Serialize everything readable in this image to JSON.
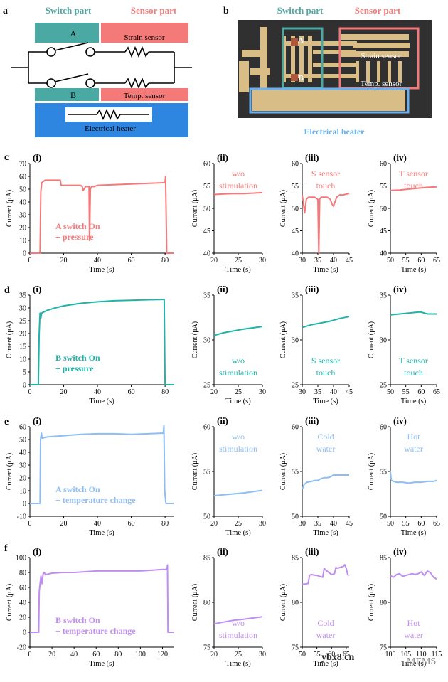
{
  "panel_letters": {
    "a": "a",
    "b": "b",
    "c": "c",
    "d": "d",
    "e": "e",
    "f": "f"
  },
  "panel_a": {
    "header_switch": "Switch part",
    "header_sensor": "Sensor part",
    "box_a": "A",
    "box_b": "B",
    "strain_label": "Strain sensor",
    "temp_label": "Temp. sensor",
    "heater_label": "Electrical heater"
  },
  "panel_b": {
    "header_switch": "Switch part",
    "header_sensor": "Sensor part",
    "label_a": "A",
    "label_b": "B",
    "strain_label": "Strain sensor",
    "temp_label": "Temp. sensor",
    "heater_caption": "Electrical heater"
  },
  "colors": {
    "switch_teal": "#4aa9a3",
    "sensor_pink": "#f47a7a",
    "heater_blue": "#2f86e0",
    "red": "#f47a7a",
    "teal": "#21b3a9",
    "blue": "#8ebdf5",
    "purple": "#c08ef2"
  },
  "watermark": {
    "left": "ybx8.cn",
    "right": "MEMS"
  },
  "chart_data": [
    {
      "id": "c",
      "color": "#f47a7a",
      "ylabel": "Current (μA)",
      "xlabel_main": "Time (s)",
      "xlabel_sub": "Time (s)",
      "subs": [
        {
          "label": "(i)",
          "type": "line",
          "xlim": [
            0,
            85
          ],
          "ylim": [
            0,
            70
          ],
          "xticks": [
            0,
            20,
            40,
            60,
            80
          ],
          "yticks": [
            0,
            10,
            20,
            30,
            40,
            50,
            60,
            70
          ],
          "annotation": [
            "A switch On",
            "+ pressure"
          ],
          "x": [
            0,
            6,
            6.5,
            7,
            8,
            9,
            18,
            18.5,
            30,
            31,
            31.5,
            33,
            34,
            35,
            35.3,
            35.8,
            36.5,
            38,
            40,
            60,
            79,
            80,
            80.3,
            81,
            85
          ],
          "y": [
            0,
            0,
            48,
            55,
            56,
            57,
            57,
            53,
            53,
            52,
            49,
            52,
            52,
            52,
            10,
            50,
            52,
            52,
            53,
            54,
            55,
            55,
            60,
            0,
            0
          ]
        },
        {
          "label": "(ii)",
          "type": "line",
          "xlim": [
            20,
            30
          ],
          "ylim": [
            40,
            60
          ],
          "xticks": [
            20,
            25,
            30
          ],
          "yticks": [
            40,
            45,
            50,
            55,
            60
          ],
          "annotation": [
            "w/o",
            "stimulation"
          ],
          "x": [
            20,
            22,
            24,
            26,
            28,
            30
          ],
          "y": [
            53.1,
            53.2,
            53.3,
            53.3,
            53.4,
            53.5
          ]
        },
        {
          "label": "(iii)",
          "type": "line",
          "xlim": [
            30,
            45
          ],
          "ylim": [
            40,
            60
          ],
          "xticks": [
            30,
            35,
            40,
            45
          ],
          "yticks": [
            40,
            45,
            50,
            55,
            60
          ],
          "annotation": [
            "S sensor",
            "touch"
          ],
          "x": [
            30,
            30.4,
            30.8,
            31.3,
            32,
            34,
            35,
            35.3,
            35.6,
            36,
            36.5,
            38,
            39,
            39.5,
            40,
            41,
            42,
            43,
            45
          ],
          "y": [
            53,
            51,
            49,
            52,
            52.5,
            52.5,
            52,
            40,
            52,
            52.5,
            52.5,
            52.5,
            52,
            51,
            50.5,
            52.5,
            53,
            53,
            53.3
          ]
        },
        {
          "label": "(iv)",
          "type": "line",
          "xlim": [
            50,
            65
          ],
          "ylim": [
            40,
            60
          ],
          "xticks": [
            50,
            55,
            60,
            65
          ],
          "yticks": [
            40,
            45,
            50,
            55,
            60
          ],
          "annotation": [
            "T sensor",
            "touch"
          ],
          "x": [
            50,
            53,
            56,
            59,
            62,
            65
          ],
          "y": [
            54,
            54.1,
            54.3,
            54.5,
            54.7,
            54.8
          ]
        }
      ]
    },
    {
      "id": "d",
      "color": "#21b3a9",
      "ylabel": "Current (μA)",
      "xlabel_main": "Time (s)",
      "xlabel_sub": "Time (s)",
      "subs": [
        {
          "label": "(i)",
          "type": "line",
          "xlim": [
            0,
            85
          ],
          "ylim": [
            0,
            35
          ],
          "xticks": [
            0,
            20,
            40,
            60,
            80
          ],
          "yticks": [
            0,
            5,
            10,
            15,
            20,
            25,
            30,
            35
          ],
          "annotation": [
            "B switch On",
            "+ pressure"
          ],
          "x": [
            0,
            5,
            5.5,
            6,
            6.5,
            7,
            10,
            15,
            20,
            30,
            40,
            50,
            60,
            70,
            79,
            79.5,
            80,
            85
          ],
          "y": [
            0,
            0,
            20,
            28,
            26,
            28,
            29,
            30,
            30.8,
            31.8,
            32.4,
            32.8,
            33,
            33.2,
            33.3,
            33.3,
            0,
            0
          ]
        },
        {
          "label": "(ii)",
          "type": "line",
          "xlim": [
            20,
            30
          ],
          "ylim": [
            25,
            35
          ],
          "xticks": [
            20,
            25,
            30
          ],
          "yticks": [
            25,
            30,
            35
          ],
          "annotation": [
            "w/o",
            "stimulation"
          ],
          "x": [
            20,
            22,
            24,
            26,
            28,
            30
          ],
          "y": [
            30.5,
            30.8,
            31,
            31.2,
            31.35,
            31.5
          ]
        },
        {
          "label": "(iii)",
          "type": "line",
          "xlim": [
            30,
            45
          ],
          "ylim": [
            25,
            35
          ],
          "xticks": [
            30,
            35,
            40,
            45
          ],
          "yticks": [
            25,
            30,
            35
          ],
          "annotation": [
            "S sensor",
            "touch"
          ],
          "x": [
            30,
            33,
            36,
            39,
            42,
            45
          ],
          "y": [
            31.4,
            31.7,
            31.9,
            32.1,
            32.4,
            32.6
          ]
        },
        {
          "label": "(iv)",
          "type": "line",
          "xlim": [
            50,
            65
          ],
          "ylim": [
            25,
            35
          ],
          "xticks": [
            50,
            55,
            60,
            65
          ],
          "yticks": [
            25,
            30,
            35
          ],
          "annotation": [
            "T sensor",
            "touch"
          ],
          "x": [
            50,
            53,
            56,
            59,
            60,
            62,
            65
          ],
          "y": [
            32.8,
            32.9,
            33,
            33.1,
            33.1,
            32.9,
            32.9
          ]
        }
      ]
    },
    {
      "id": "e",
      "color": "#8ebdf5",
      "ylabel": "Current (μA)",
      "xlabel_main": "Time (s)",
      "xlabel_sub": "Time (s)",
      "subs": [
        {
          "label": "(i)",
          "type": "line",
          "xlim": [
            0,
            85
          ],
          "ylim": [
            -10,
            60
          ],
          "xticks": [
            0,
            20,
            40,
            60,
            80
          ],
          "yticks": [
            -10,
            0,
            10,
            20,
            30,
            40,
            50,
            60
          ],
          "annotation": [
            "A switch On",
            "+ temperature change"
          ],
          "x": [
            0,
            6,
            6.3,
            6.8,
            7.3,
            10,
            20,
            30,
            40,
            50,
            60,
            70,
            79,
            79.3,
            79.8,
            80.5,
            85
          ],
          "y": [
            0,
            0,
            50,
            55,
            51,
            52,
            53,
            54,
            54.5,
            54.5,
            54,
            54.5,
            55,
            61,
            10,
            0,
            0
          ]
        },
        {
          "label": "(ii)",
          "type": "line",
          "xlim": [
            20,
            30
          ],
          "ylim": [
            50,
            60
          ],
          "xticks": [
            20,
            25,
            30
          ],
          "yticks": [
            50,
            55,
            60
          ],
          "annotation": [
            "w/o",
            "stimulation"
          ],
          "x": [
            20,
            22,
            24,
            26,
            28,
            30
          ],
          "y": [
            52.3,
            52.4,
            52.5,
            52.6,
            52.75,
            52.9
          ]
        },
        {
          "label": "(iii)",
          "type": "line",
          "xlim": [
            30,
            45
          ],
          "ylim": [
            50,
            60
          ],
          "xticks": [
            30,
            35,
            40,
            45
          ],
          "yticks": [
            50,
            55,
            60
          ],
          "annotation": [
            "Cold",
            "water"
          ],
          "x": [
            30,
            30.5,
            31.5,
            33,
            34,
            35,
            36,
            37,
            38,
            39,
            40,
            41,
            42,
            43,
            45
          ],
          "y": [
            53,
            53.5,
            53.8,
            53.9,
            54,
            54,
            54.2,
            54.3,
            54.3,
            54.4,
            54.6,
            54.6,
            54.6,
            54.6,
            54.6
          ]
        },
        {
          "label": "(iv)",
          "type": "line",
          "xlim": [
            50,
            65
          ],
          "ylim": [
            50,
            60
          ],
          "xticks": [
            50,
            55,
            60,
            65
          ],
          "yticks": [
            50,
            55,
            60
          ],
          "annotation": [
            "Hot",
            "water"
          ],
          "x": [
            50,
            50.3,
            51,
            52,
            54,
            56,
            58,
            60,
            62,
            64,
            65
          ],
          "y": [
            55,
            54,
            53.9,
            53.8,
            53.8,
            53.7,
            53.8,
            53.8,
            53.9,
            53.9,
            54
          ]
        }
      ]
    },
    {
      "id": "f",
      "color": "#c08ef2",
      "ylabel": "Current (μA)",
      "xlabel_main": "Time (s)",
      "xlabel_sub": "Time (s)",
      "subs": [
        {
          "label": "(i)",
          "type": "line",
          "xlim": [
            0,
            130
          ],
          "ylim": [
            -20,
            100
          ],
          "xticks": [
            0,
            20,
            40,
            60,
            80,
            100,
            120
          ],
          "yticks": [
            -20,
            0,
            20,
            40,
            60,
            80,
            100
          ],
          "annotation": [
            "B switch On",
            "+ temperature change"
          ],
          "x": [
            0,
            8,
            8.5,
            10,
            11,
            12,
            13,
            14,
            20,
            30,
            40,
            50,
            60,
            70,
            80,
            90,
            100,
            110,
            120,
            124,
            124.5,
            125,
            130
          ],
          "y": [
            0,
            0,
            55,
            75,
            65,
            78,
            80,
            77,
            79,
            80,
            80,
            81,
            82,
            82,
            82,
            82,
            82,
            83,
            84,
            84,
            90,
            0,
            0
          ]
        },
        {
          "label": "(ii)",
          "type": "line",
          "xlim": [
            20,
            30
          ],
          "ylim": [
            75,
            85
          ],
          "xticks": [
            20,
            25,
            30
          ],
          "yticks": [
            75,
            80,
            85
          ],
          "annotation": [
            "w/o",
            "stimulation"
          ],
          "x": [
            20,
            22,
            24,
            26,
            28,
            30
          ],
          "y": [
            77.6,
            77.8,
            78,
            78.1,
            78.25,
            78.4
          ]
        },
        {
          "label": "(iii)",
          "type": "line",
          "xlim": [
            50,
            66
          ],
          "ylim": [
            75,
            85
          ],
          "xticks": [
            50,
            55,
            60,
            65
          ],
          "yticks": [
            75,
            80,
            85
          ],
          "annotation": [
            "Cold",
            "water"
          ],
          "x": [
            50,
            52,
            52.5,
            53,
            55,
            57,
            57.5,
            58,
            60,
            61,
            61.5,
            62,
            64,
            64.5,
            65,
            65.5,
            66
          ],
          "y": [
            82,
            82.1,
            83,
            83.1,
            83,
            82.8,
            83.8,
            83.6,
            83.1,
            83.2,
            83.9,
            83.8,
            84,
            84.2,
            83.8,
            83.1,
            83
          ]
        },
        {
          "label": "(iv)",
          "type": "line",
          "xlim": [
            100,
            115
          ],
          "ylim": [
            75,
            85
          ],
          "xticks": [
            100,
            105,
            110,
            115
          ],
          "yticks": [
            75,
            80,
            85
          ],
          "tick_text": [
            "100",
            "105",
            "110",
            "115"
          ],
          "annotation": [
            "Hot",
            "water"
          ],
          "x": [
            100,
            101,
            102,
            103,
            104,
            105,
            106,
            107,
            108,
            109,
            110,
            111,
            112,
            113,
            114,
            115
          ],
          "y": [
            83,
            82.8,
            83.1,
            83.2,
            82.9,
            83,
            83.1,
            83.2,
            83.1,
            83.2,
            83.4,
            83,
            83.5,
            83.3,
            82.8,
            82.6
          ]
        }
      ]
    }
  ]
}
